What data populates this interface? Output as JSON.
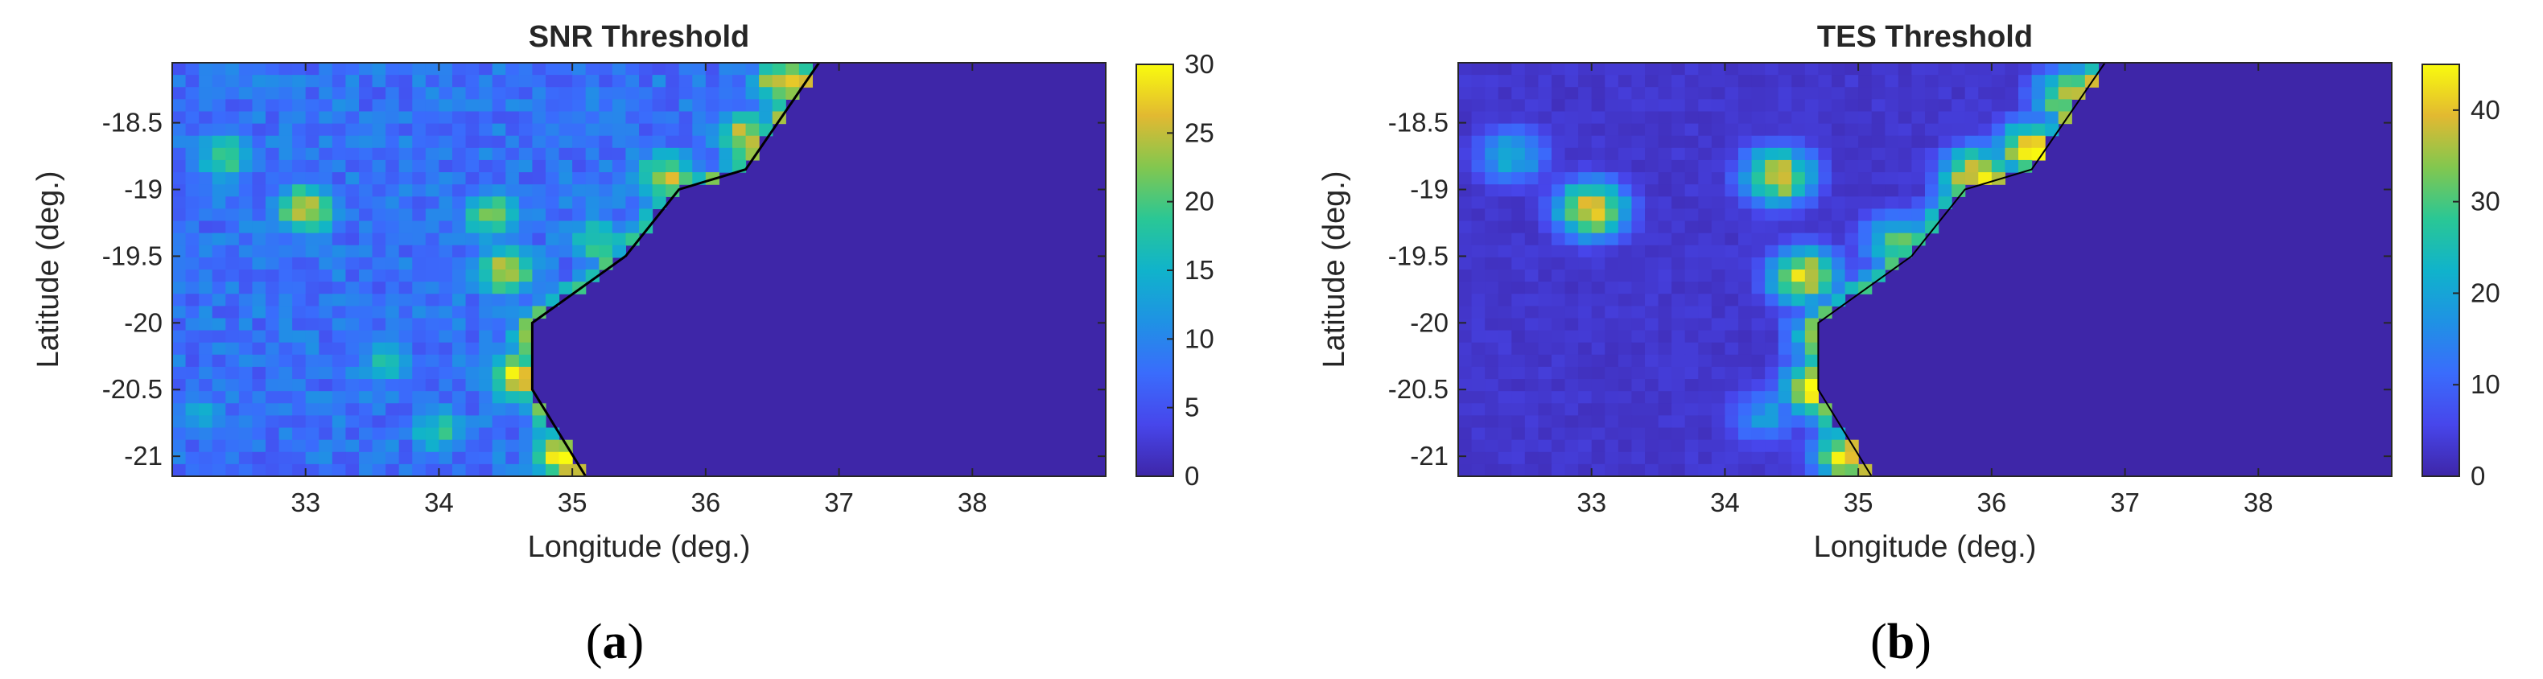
{
  "panel_labels": [
    {
      "open": "(",
      "letter": "a",
      "close": ")"
    },
    {
      "open": "(",
      "letter": "b",
      "close": ")"
    }
  ],
  "colormap": "parula",
  "colors": {
    "background": "#ffffff",
    "axis": "#262626",
    "coastline": "#000000",
    "ocean": "#3e26a8"
  },
  "chart_data": [
    {
      "type": "heatmap",
      "title": "SNR Threshold",
      "xlabel": "Longitude (deg.)",
      "ylabel": "Latitude (deg.)",
      "xlim": [
        32.0,
        39.0
      ],
      "ylim": [
        -21.15,
        -18.05
      ],
      "xticks": [
        33,
        34,
        35,
        36,
        37,
        38
      ],
      "xtick_labels": [
        "33",
        "34",
        "35",
        "36",
        "37",
        "38"
      ],
      "yticks": [
        -18.5,
        -19,
        -19.5,
        -20,
        -20.5,
        -21
      ],
      "ytick_labels": [
        "-18.5",
        "-19",
        "-19.5",
        "-20",
        "-20.5",
        "-21"
      ],
      "colorbar": {
        "min": 0,
        "max": 30,
        "ticks": [
          0,
          5,
          10,
          15,
          20,
          25,
          30
        ],
        "tick_labels": [
          "0",
          "5",
          "10",
          "15",
          "20",
          "25",
          "30"
        ]
      },
      "grid": false,
      "ocean_value": 0,
      "land_background": 8,
      "hotspots": [
        {
          "lon": 34.6,
          "lat": -20.4,
          "value": 28
        },
        {
          "lon": 34.95,
          "lat": -21.0,
          "value": 30
        },
        {
          "lon": 34.5,
          "lat": -19.6,
          "value": 26
        },
        {
          "lon": 34.4,
          "lat": -19.2,
          "value": 22
        },
        {
          "lon": 35.2,
          "lat": -19.4,
          "value": 20
        },
        {
          "lon": 35.7,
          "lat": -18.9,
          "value": 24
        },
        {
          "lon": 36.3,
          "lat": -18.6,
          "value": 25
        },
        {
          "lon": 36.6,
          "lat": -18.2,
          "value": 28
        },
        {
          "lon": 33.0,
          "lat": -19.15,
          "value": 26
        },
        {
          "lon": 32.4,
          "lat": -18.75,
          "value": 20
        },
        {
          "lon": 33.6,
          "lat": -20.3,
          "value": 16
        },
        {
          "lon": 34.0,
          "lat": -20.8,
          "value": 18
        },
        {
          "lon": 32.2,
          "lat": -20.7,
          "value": 14
        }
      ],
      "coastline": {
        "lon": [
          35.1,
          34.7,
          34.7,
          35.4,
          35.8,
          36.3,
          36.85
        ],
        "lat": [
          -21.15,
          -20.5,
          -20.0,
          -19.5,
          -19.0,
          -18.85,
          -18.05
        ]
      }
    },
    {
      "type": "heatmap",
      "title": "TES Threshold",
      "xlabel": "Longitude (deg.)",
      "ylabel": "Latitude (deg.)",
      "xlim": [
        32.0,
        39.0
      ],
      "ylim": [
        -21.15,
        -18.05
      ],
      "xticks": [
        33,
        34,
        35,
        36,
        37,
        38
      ],
      "xtick_labels": [
        "33",
        "34",
        "35",
        "36",
        "37",
        "38"
      ],
      "yticks": [
        -18.5,
        -19,
        -19.5,
        -20,
        -20.5,
        -21
      ],
      "ytick_labels": [
        "-18.5",
        "-19",
        "-19.5",
        "-20",
        "-20.5",
        "-21"
      ],
      "colorbar": {
        "min": 0,
        "max": 45,
        "ticks": [
          0,
          10,
          20,
          30,
          40
        ],
        "tick_labels": [
          "0",
          "10",
          "20",
          "30",
          "40"
        ]
      },
      "grid": false,
      "ocean_value": 0,
      "land_background": 3,
      "hotspots": [
        {
          "lon": 34.7,
          "lat": -20.5,
          "value": 45
        },
        {
          "lon": 34.95,
          "lat": -21.0,
          "value": 45
        },
        {
          "lon": 34.6,
          "lat": -19.65,
          "value": 42
        },
        {
          "lon": 34.4,
          "lat": -18.9,
          "value": 40
        },
        {
          "lon": 35.3,
          "lat": -19.4,
          "value": 30
        },
        {
          "lon": 35.9,
          "lat": -18.9,
          "value": 44
        },
        {
          "lon": 36.3,
          "lat": -18.7,
          "value": 42
        },
        {
          "lon": 36.6,
          "lat": -18.3,
          "value": 40
        },
        {
          "lon": 33.0,
          "lat": -19.15,
          "value": 42
        },
        {
          "lon": 32.4,
          "lat": -18.75,
          "value": 22
        },
        {
          "lon": 34.3,
          "lat": -20.7,
          "value": 18
        }
      ],
      "coastline": {
        "lon": [
          35.1,
          34.7,
          34.7,
          35.4,
          35.8,
          36.3,
          36.85
        ],
        "lat": [
          -21.15,
          -20.5,
          -20.0,
          -19.5,
          -19.0,
          -18.85,
          -18.05
        ]
      }
    }
  ]
}
